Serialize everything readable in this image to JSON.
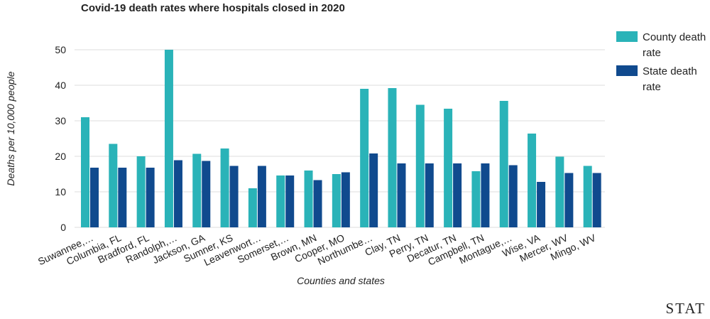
{
  "chart_data": {
    "type": "bar",
    "title": "Covid-19 death rates where hospitals closed in 2020",
    "xlabel": "Counties and states",
    "ylabel": "Deaths per 10,000 people",
    "ylim": [
      0,
      50
    ],
    "yticks": [
      0,
      10,
      20,
      30,
      40,
      50
    ],
    "grid": true,
    "legend_position": "right",
    "categories": [
      "Suwannee,…",
      "Columbia, FL",
      "Bradford, FL",
      "Randolph,…",
      "Jackson, GA",
      "Sumner, KS",
      "Leavenwort…",
      "Somerset,…",
      "Brown, MN",
      "Cooper, MO",
      "Northumbe…",
      "Clay, TN",
      "Perry, TN",
      "Decatur, TN",
      "Campbell, TN",
      "Montague,…",
      "Wise, VA",
      "Mercer, WV",
      "Mingo, WV"
    ],
    "series": [
      {
        "name": "County death rate",
        "color": "#2ab3b8",
        "values": [
          31,
          23.5,
          20,
          50,
          20.7,
          22.2,
          11,
          14.6,
          16,
          15,
          39,
          39.2,
          34.5,
          33.4,
          15.8,
          35.6,
          26.4,
          19.9,
          17.3
        ]
      },
      {
        "name": "State death rate",
        "color": "#104a8e",
        "values": [
          16.8,
          16.8,
          16.8,
          18.9,
          18.7,
          17.3,
          17.3,
          14.6,
          13.3,
          15.5,
          20.8,
          18,
          18,
          18,
          18,
          17.5,
          12.8,
          15.3,
          15.3
        ]
      }
    ]
  },
  "legend": {
    "county_label": "County death rate",
    "state_label": "State death rate"
  },
  "brand": "STAT"
}
